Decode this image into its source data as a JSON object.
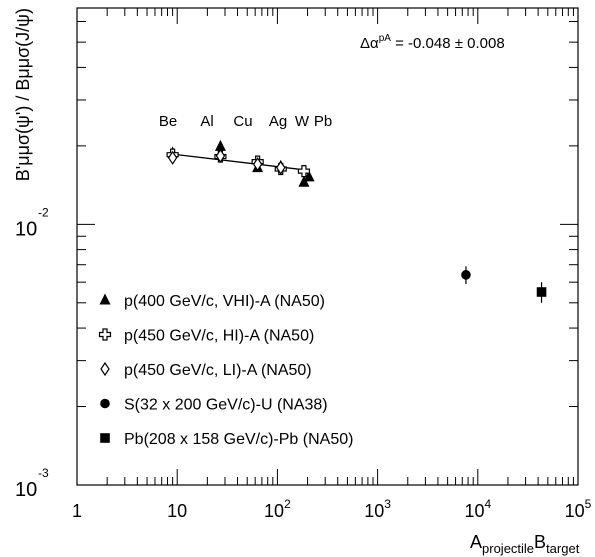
{
  "chart_data": {
    "type": "scatter",
    "title": "",
    "xlabel": {
      "main": "A",
      "sub1": "projectile",
      "mid": "B",
      "sub2": "target"
    },
    "ylabel": "B'μμσ(ψ') / Bμμσ(J/ψ)",
    "xscale": "log",
    "yscale": "log",
    "xlim": [
      1,
      100000
    ],
    "ylim": [
      0.001,
      0.0676
    ],
    "x_tick_labels": [
      {
        "value": 1,
        "base": "1",
        "exp": ""
      },
      {
        "value": 10,
        "base": "10",
        "exp": ""
      },
      {
        "value": 100,
        "base": "10",
        "exp": "2"
      },
      {
        "value": 1000,
        "base": "10",
        "exp": "3"
      },
      {
        "value": 10000,
        "base": "10",
        "exp": "4"
      },
      {
        "value": 100000,
        "base": "10",
        "exp": "5"
      }
    ],
    "y_tick_labels": [
      {
        "value": 0.01,
        "base": "10",
        "exp": "-2"
      },
      {
        "value": 0.001,
        "base": "10",
        "exp": "-3"
      }
    ],
    "annotation": {
      "lhs": "Δα",
      "sup": "pA",
      "rhs": " = -0.048 ± 0.008"
    },
    "nucleus_labels": [
      {
        "text": "Be",
        "x": 9
      },
      {
        "text": "Al",
        "x": 27
      },
      {
        "text": "Cu",
        "x": 63.5
      },
      {
        "text": "Ag",
        "x": 108
      },
      {
        "text": "W",
        "x": 184
      },
      {
        "text": "Pb",
        "x": 207
      }
    ],
    "fit_line": {
      "x": [
        9,
        207
      ],
      "y": [
        0.0186,
        0.0161
      ]
    },
    "legend_position": "bottom-left",
    "series": [
      {
        "name": "p(400 GeV/c, VHI)-A (NA50)",
        "marker": "triangle",
        "points": [
          {
            "x": 9,
            "y": 0.0188,
            "err": 0.0005
          },
          {
            "x": 27,
            "y": 0.0199,
            "err": 0.0007
          },
          {
            "x": 63.5,
            "y": 0.0165,
            "err": 0.0005
          },
          {
            "x": 108,
            "y": 0.0167,
            "err": 0.0005
          },
          {
            "x": 184,
            "y": 0.0145,
            "err": 0.0005
          },
          {
            "x": 207,
            "y": 0.0152,
            "err": 0.0005
          }
        ]
      },
      {
        "name": "p(450 GeV/c, HI)-A (NA50)",
        "marker": "open-cross",
        "points": [
          {
            "x": 9,
            "y": 0.0185,
            "err": 0.0004
          },
          {
            "x": 27,
            "y": 0.0182,
            "err": 0.0004
          },
          {
            "x": 63.5,
            "y": 0.0174,
            "err": 0.0004
          },
          {
            "x": 108,
            "y": 0.0163,
            "err": 0.0004
          },
          {
            "x": 184,
            "y": 0.016,
            "err": 0.0004
          }
        ]
      },
      {
        "name": "p(450 GeV/c, LI)-A (NA50)",
        "marker": "open-diamond",
        "points": [
          {
            "x": 9,
            "y": 0.018,
            "err": 0.0004
          },
          {
            "x": 27,
            "y": 0.0183,
            "err": 0.0004
          },
          {
            "x": 63.5,
            "y": 0.017,
            "err": 0.0004
          },
          {
            "x": 108,
            "y": 0.0165,
            "err": 0.0004
          }
        ]
      },
      {
        "name": "S(32 x 200 GeV/c)-U (NA38)",
        "marker": "circle",
        "points": [
          {
            "x": 7616,
            "y": 0.0064,
            "err": 0.0005
          }
        ]
      },
      {
        "name": "Pb(208 x 158 GeV/c)-Pb (NA50)",
        "marker": "square",
        "points": [
          {
            "x": 43264,
            "y": 0.0055,
            "err": 0.0005
          }
        ]
      }
    ]
  }
}
